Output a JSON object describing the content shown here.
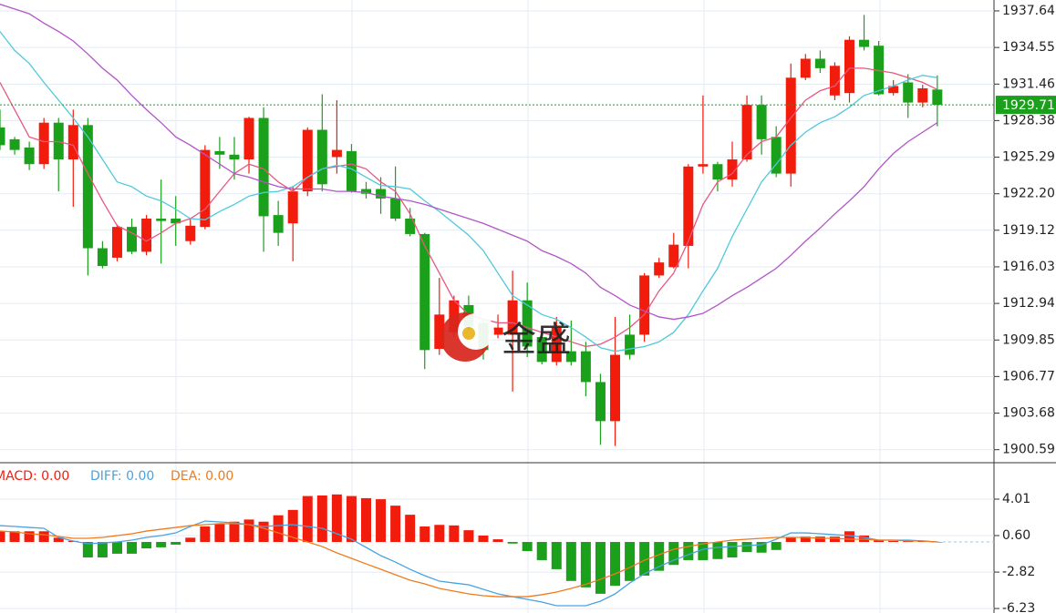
{
  "watermark": "金盛",
  "chart_data": [
    {
      "type": "candlestick",
      "open": [
        1927.8,
        1926.8,
        1926.1,
        1924.7,
        1928.2,
        1925.1,
        1928.0,
        1917.6,
        1916.8,
        1919.4,
        1917.3,
        1920.1,
        1920.1,
        1918.2,
        1919.4,
        1925.8,
        1925.5,
        1925.1,
        1928.6,
        1920.4,
        1919.7,
        1922.4,
        1927.6,
        1925.3,
        1925.8,
        1922.6,
        1922.6,
        1921.8,
        1920.1,
        1918.8,
        1909.1,
        1910.5,
        1912.8,
        1911.3,
        1910.3,
        1910.3,
        1913.2,
        1910.1,
        1908.0,
        1908.9,
        1908.9,
        1906.3,
        1903.0,
        1910.3,
        1910.3,
        1915.3,
        1916.0,
        1917.8,
        1924.5,
        1924.7,
        1923.4,
        1925.1,
        1929.7,
        1927.0,
        1923.9,
        1932.0,
        1933.6,
        1930.5,
        1930.7,
        1935.2,
        1934.7,
        1930.7,
        1931.6,
        1929.9,
        1931.0
      ],
      "high": [
        1929.3,
        1927.0,
        1926.6,
        1928.6,
        1928.6,
        1929.3,
        1928.6,
        1918.2,
        1919.6,
        1920.1,
        1920.4,
        1923.4,
        1922.0,
        1920.1,
        1926.3,
        1927.0,
        1927.0,
        1928.7,
        1929.5,
        1921.6,
        1922.8,
        1927.8,
        1930.6,
        1930.1,
        1926.4,
        1923.2,
        1923.6,
        1924.5,
        1921.0,
        1918.9,
        1915.1,
        1913.6,
        1913.6,
        1911.6,
        1912.0,
        1915.7,
        1914.7,
        1910.5,
        1911.8,
        1911.5,
        1909.7,
        1907.0,
        1911.8,
        1912.0,
        1915.5,
        1916.8,
        1918.9,
        1924.7,
        1930.5,
        1924.9,
        1926.6,
        1930.5,
        1930.5,
        1927.9,
        1933.2,
        1934.0,
        1934.3,
        1933.3,
        1935.5,
        1937.3,
        1935.1,
        1931.8,
        1932.3,
        1931.4,
        1932.2
      ],
      "low": [
        1925.9,
        1925.5,
        1924.2,
        1924.3,
        1922.4,
        1921.1,
        1915.3,
        1915.9,
        1916.5,
        1917.1,
        1917.0,
        1916.3,
        1917.8,
        1917.9,
        1919.2,
        1924.3,
        1923.4,
        1923.9,
        1917.3,
        1917.8,
        1916.5,
        1922.0,
        1922.4,
        1923.9,
        1922.3,
        1921.8,
        1920.5,
        1919.9,
        1918.6,
        1907.4,
        1908.6,
        1910.1,
        1910.7,
        1908.2,
        1910.0,
        1905.5,
        1908.4,
        1907.8,
        1907.7,
        1907.7,
        1905.1,
        1901.0,
        1900.9,
        1908.2,
        1909.7,
        1915.1,
        1915.9,
        1915.9,
        1923.9,
        1922.4,
        1922.8,
        1924.9,
        1925.5,
        1923.6,
        1922.8,
        1931.8,
        1932.4,
        1930.1,
        1929.9,
        1934.3,
        1930.5,
        1930.5,
        1928.6,
        1929.5,
        1927.9
      ],
      "close": [
        1926.3,
        1925.9,
        1924.7,
        1928.2,
        1925.1,
        1928.0,
        1917.6,
        1916.1,
        1919.4,
        1917.3,
        1920.1,
        1919.9,
        1919.7,
        1919.5,
        1925.9,
        1925.5,
        1925.1,
        1928.6,
        1920.3,
        1918.9,
        1922.4,
        1927.6,
        1923.0,
        1925.9,
        1922.4,
        1922.2,
        1921.8,
        1920.1,
        1918.8,
        1909.0,
        1912.0,
        1913.2,
        1911.0,
        1909.0,
        1910.9,
        1913.2,
        1909.3,
        1908.0,
        1910.9,
        1908.0,
        1906.3,
        1903.0,
        1908.6,
        1908.6,
        1915.3,
        1916.4,
        1917.9,
        1924.5,
        1924.7,
        1923.4,
        1925.1,
        1929.7,
        1926.8,
        1923.9,
        1932.0,
        1933.6,
        1932.8,
        1933.0,
        1935.2,
        1934.6,
        1930.6,
        1931.3,
        1929.9,
        1931.1,
        1929.71
      ],
      "up_color": "#f21c0c",
      "down_color": "#1aa01a",
      "series": [
        {
          "color": "#e8577f",
          "values": [
            1931.6,
            1929.3,
            1927.0,
            1926.6,
            1926.6,
            1926.3,
            1923.9,
            1921.6,
            1919.5,
            1918.9,
            1918.2,
            1918.9,
            1919.7,
            1920.1,
            1920.9,
            1922.4,
            1923.9,
            1924.7,
            1924.3,
            1923.2,
            1922.4,
            1923.6,
            1924.3,
            1924.5,
            1924.7,
            1924.3,
            1923.2,
            1922.4,
            1920.5,
            1917.8,
            1915.5,
            1913.2,
            1912.0,
            1911.6,
            1911.3,
            1911.3,
            1910.9,
            1910.5,
            1910.1,
            1909.7,
            1909.3,
            1909.5,
            1910.1,
            1910.9,
            1912.0,
            1914.0,
            1915.5,
            1918.2,
            1921.3,
            1923.2,
            1923.9,
            1925.5,
            1926.6,
            1927.0,
            1928.6,
            1930.1,
            1930.9,
            1931.3,
            1932.8,
            1932.8,
            1932.6,
            1932.4,
            1932.0,
            1931.6,
            1931.0
          ]
        },
        {
          "color": "#4fc9dc",
          "values": [
            1935.9,
            1934.3,
            1933.2,
            1931.6,
            1930.1,
            1928.6,
            1927.0,
            1925.1,
            1923.2,
            1922.8,
            1922.0,
            1921.6,
            1920.9,
            1920.1,
            1920.0,
            1920.7,
            1921.3,
            1922.0,
            1922.3,
            1922.4,
            1922.8,
            1923.6,
            1924.3,
            1924.6,
            1924.3,
            1923.6,
            1922.9,
            1922.8,
            1922.6,
            1921.6,
            1920.7,
            1919.7,
            1918.7,
            1917.4,
            1915.5,
            1913.6,
            1912.8,
            1912.0,
            1911.6,
            1910.9,
            1910.1,
            1909.2,
            1908.9,
            1909.1,
            1909.3,
            1909.7,
            1910.5,
            1912.0,
            1914.0,
            1915.9,
            1918.6,
            1920.9,
            1923.2,
            1924.7,
            1926.3,
            1927.4,
            1928.2,
            1928.7,
            1929.5,
            1930.5,
            1930.9,
            1931.3,
            1931.8,
            1932.2,
            1932.0
          ]
        },
        {
          "color": "#b255c8",
          "values": [
            1938.2,
            1937.8,
            1937.4,
            1936.6,
            1935.9,
            1935.1,
            1934.0,
            1932.8,
            1931.8,
            1930.5,
            1929.3,
            1928.2,
            1927.0,
            1926.3,
            1925.5,
            1924.7,
            1923.9,
            1923.6,
            1923.2,
            1922.8,
            1922.6,
            1922.6,
            1922.6,
            1922.4,
            1922.4,
            1922.3,
            1922.0,
            1921.8,
            1921.6,
            1921.3,
            1920.9,
            1920.5,
            1920.1,
            1919.7,
            1919.2,
            1918.7,
            1918.2,
            1917.4,
            1916.9,
            1916.3,
            1915.5,
            1914.3,
            1913.6,
            1912.8,
            1912.3,
            1911.8,
            1911.6,
            1911.8,
            1912.1,
            1912.8,
            1913.6,
            1914.3,
            1915.1,
            1915.9,
            1917.0,
            1918.2,
            1919.3,
            1920.5,
            1921.6,
            1922.8,
            1924.3,
            1925.6,
            1926.6,
            1927.4,
            1928.2
          ]
        }
      ],
      "last_price": 1929.71,
      "last_price_color": "#1aa01a",
      "ylim": [
        1899.49,
        1938.56
      ],
      "yticks": [
        1937.64,
        1934.55,
        1931.46,
        1928.38,
        1925.29,
        {
          "value": 1922.2,
          "label": "1922.20"
        },
        1919.12,
        1916.03,
        1912.94,
        1909.85,
        1906.77,
        1903.68,
        1900.59
      ],
      "grid": true
    },
    {
      "type": "macd",
      "up_color": "#f21c0c",
      "down_color": "#1aa01a",
      "series": [
        {
          "name": "MACD: 0.00",
          "color": "#f21c0c",
          "kind": "histogram",
          "values": [
            1.0,
            1.0,
            1.0,
            1.0,
            0.4,
            0.1,
            -1.45,
            -1.45,
            -1.1,
            -1.1,
            -0.6,
            -0.5,
            -0.25,
            0.4,
            1.45,
            1.7,
            1.9,
            2.1,
            1.9,
            2.5,
            3.0,
            4.3,
            4.35,
            4.45,
            4.3,
            4.1,
            4.0,
            3.4,
            2.55,
            1.45,
            1.6,
            1.55,
            1.1,
            0.6,
            0.25,
            -0.15,
            -0.85,
            -1.7,
            -2.55,
            -3.65,
            -4.25,
            -4.85,
            -4.1,
            -3.65,
            -3.15,
            -2.7,
            -2.15,
            -1.7,
            -1.7,
            -1.6,
            -1.45,
            -0.95,
            -1.0,
            -0.75,
            0.4,
            0.5,
            0.5,
            0.5,
            1.0,
            0.6,
            0.15,
            0.1,
            0.1,
            0.1,
            0.0
          ]
        },
        {
          "name": "DIFF: 0.00",
          "color": "#4aa3e0",
          "kind": "line",
          "values": [
            1.53,
            1.45,
            1.36,
            1.28,
            0.43,
            0.09,
            -0.17,
            -0.09,
            0,
            0.17,
            0.43,
            0.6,
            0.85,
            1.45,
            1.96,
            1.88,
            1.79,
            1.62,
            1.45,
            1.53,
            1.62,
            1.45,
            1.28,
            0.77,
            0.26,
            -0.51,
            -1.28,
            -1.88,
            -2.56,
            -3.15,
            -3.67,
            -3.84,
            -4.01,
            -4.43,
            -4.86,
            -5.12,
            -5.37,
            -5.63,
            -5.97,
            -5.97,
            -5.97,
            -5.54,
            -4.86,
            -3.84,
            -2.98,
            -2.3,
            -1.71,
            -1.19,
            -0.68,
            -0.51,
            -0.43,
            -0.34,
            -0.26,
            0.26,
            0.85,
            0.85,
            0.77,
            0.68,
            0.6,
            0.43,
            0.17,
            0.17,
            0.17,
            0.09,
            0
          ]
        },
        {
          "name": "DEA: 0.00",
          "color": "#f07a1e",
          "kind": "line",
          "values": [
            1.02,
            0.94,
            0.77,
            0.68,
            0.51,
            0.34,
            0.34,
            0.43,
            0.6,
            0.77,
            1.02,
            1.19,
            1.36,
            1.53,
            1.62,
            1.71,
            1.71,
            1.62,
            1.28,
            0.85,
            0.43,
            0,
            -0.43,
            -1.02,
            -1.53,
            -2.05,
            -2.56,
            -3.07,
            -3.58,
            -3.92,
            -4.35,
            -4.6,
            -4.86,
            -5.03,
            -5.12,
            -5.12,
            -5.12,
            -4.94,
            -4.69,
            -4.35,
            -3.96,
            -3.5,
            -2.98,
            -2.39,
            -1.71,
            -1.19,
            -0.68,
            -0.43,
            -0.17,
            0,
            0.17,
            0.26,
            0.34,
            0.43,
            0.43,
            0.43,
            0.34,
            0.34,
            0.26,
            0.26,
            0.17,
            0.17,
            0.09,
            0.09,
            0
          ]
        }
      ],
      "ylim": [
        -6.65,
        7.42
      ],
      "yticks": [
        4.01,
        {
          "value": 0.6,
          "label": "0.60"
        },
        -2.82,
        -6.23
      ],
      "grid": true
    }
  ]
}
